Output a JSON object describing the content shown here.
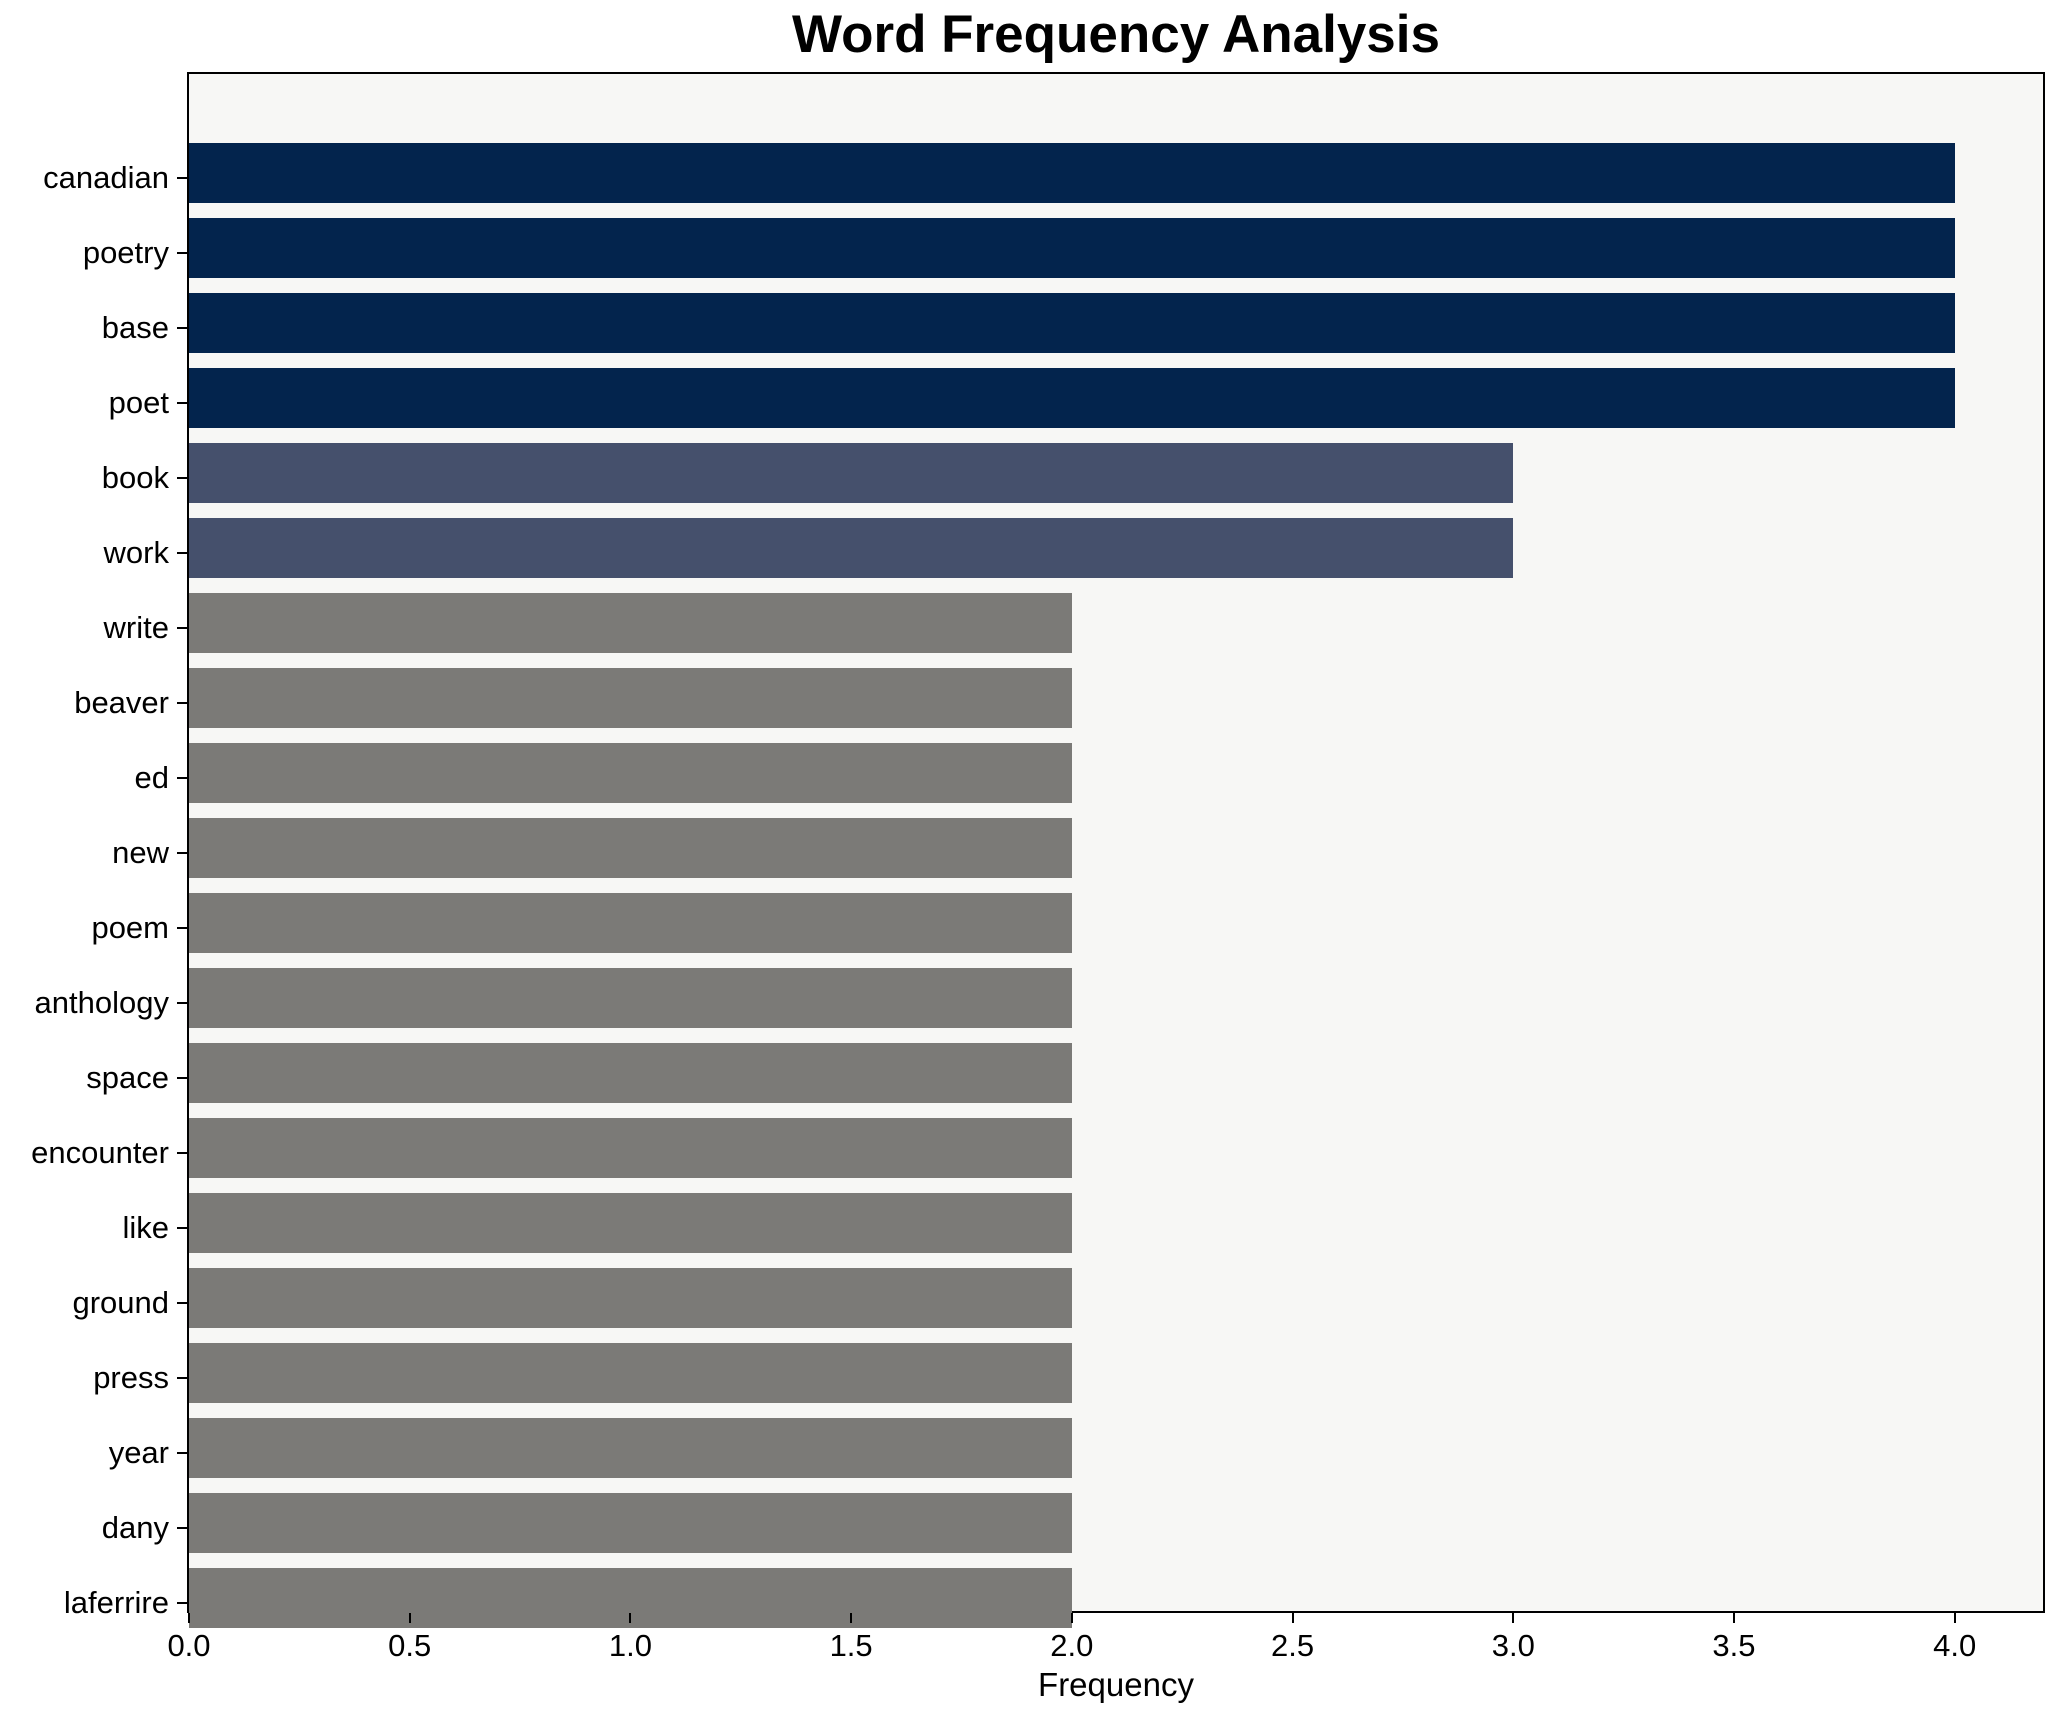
{
  "chart_data": {
    "type": "bar",
    "orientation": "horizontal",
    "title": "Word Frequency Analysis",
    "xlabel": "Frequency",
    "ylabel": "",
    "categories": [
      "canadian",
      "poetry",
      "base",
      "poet",
      "book",
      "work",
      "write",
      "beaver",
      "ed",
      "new",
      "poem",
      "anthology",
      "space",
      "encounter",
      "like",
      "ground",
      "press",
      "year",
      "dany",
      "laferrire"
    ],
    "values": [
      4,
      4,
      4,
      4,
      3,
      3,
      2,
      2,
      2,
      2,
      2,
      2,
      2,
      2,
      2,
      2,
      2,
      2,
      2,
      2
    ],
    "xlim": [
      0,
      4.2
    ],
    "xticks": [
      0,
      0.5,
      1.0,
      1.5,
      2.0,
      2.5,
      3.0,
      3.5,
      4.0
    ],
    "xtick_labels": [
      "0.0",
      "0.5",
      "1.0",
      "1.5",
      "2.0",
      "2.5",
      "3.0",
      "3.5",
      "4.0"
    ],
    "grid": false,
    "legend": null,
    "colors": {
      "bar_value_4": "#03244d",
      "bar_value_3": "#45506c",
      "bar_value_2": "#7b7a77",
      "plot_background": "#f7f7f5",
      "figure_background": "#ffffff",
      "spine": "#000000",
      "text": "#000000"
    }
  }
}
